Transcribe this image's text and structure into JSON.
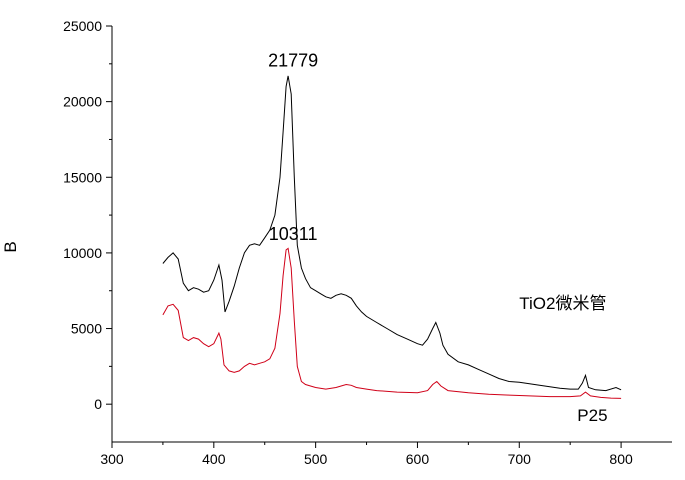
{
  "chart_data": {
    "type": "line",
    "ylabel": "B",
    "xlim": [
      300,
      850
    ],
    "ylim": [
      -2500,
      25000
    ],
    "x_ticks": [
      "300",
      "400",
      "500",
      "600",
      "700",
      "800"
    ],
    "y_ticks": [
      "0",
      "5000",
      "10000",
      "15000",
      "20000",
      "25000"
    ],
    "annotations": [
      {
        "text": "21779",
        "x": 472,
        "y": 21779
      },
      {
        "text": "10311",
        "x": 472,
        "y": 10311
      }
    ],
    "series": [
      {
        "name": "TiO2微米管",
        "color": "#000000",
        "points": [
          [
            350,
            9300
          ],
          [
            355,
            9700
          ],
          [
            360,
            10000
          ],
          [
            365,
            9600
          ],
          [
            370,
            8000
          ],
          [
            375,
            7500
          ],
          [
            380,
            7700
          ],
          [
            385,
            7600
          ],
          [
            390,
            7400
          ],
          [
            395,
            7500
          ],
          [
            400,
            8200
          ],
          [
            405,
            9200
          ],
          [
            408,
            8200
          ],
          [
            411,
            6100
          ],
          [
            415,
            6800
          ],
          [
            420,
            7800
          ],
          [
            425,
            9000
          ],
          [
            430,
            10000
          ],
          [
            435,
            10500
          ],
          [
            440,
            10600
          ],
          [
            445,
            10500
          ],
          [
            450,
            11000
          ],
          [
            455,
            11500
          ],
          [
            460,
            12500
          ],
          [
            465,
            15000
          ],
          [
            468,
            18000
          ],
          [
            471,
            21000
          ],
          [
            473,
            21700
          ],
          [
            476,
            20500
          ],
          [
            479,
            15000
          ],
          [
            482,
            10500
          ],
          [
            486,
            9000
          ],
          [
            490,
            8300
          ],
          [
            495,
            7700
          ],
          [
            500,
            7500
          ],
          [
            505,
            7300
          ],
          [
            510,
            7100
          ],
          [
            515,
            7000
          ],
          [
            520,
            7200
          ],
          [
            525,
            7300
          ],
          [
            530,
            7200
          ],
          [
            535,
            7000
          ],
          [
            540,
            6500
          ],
          [
            545,
            6100
          ],
          [
            550,
            5800
          ],
          [
            560,
            5400
          ],
          [
            570,
            5000
          ],
          [
            580,
            4600
          ],
          [
            590,
            4300
          ],
          [
            600,
            4000
          ],
          [
            605,
            3900
          ],
          [
            610,
            4300
          ],
          [
            615,
            5000
          ],
          [
            618,
            5400
          ],
          [
            622,
            4700
          ],
          [
            625,
            3900
          ],
          [
            630,
            3300
          ],
          [
            640,
            2800
          ],
          [
            650,
            2600
          ],
          [
            660,
            2300
          ],
          [
            670,
            2000
          ],
          [
            680,
            1700
          ],
          [
            690,
            1500
          ],
          [
            700,
            1450
          ],
          [
            710,
            1350
          ],
          [
            720,
            1250
          ],
          [
            730,
            1150
          ],
          [
            740,
            1050
          ],
          [
            750,
            1000
          ],
          [
            758,
            1000
          ],
          [
            762,
            1400
          ],
          [
            765,
            1900
          ],
          [
            768,
            1100
          ],
          [
            775,
            950
          ],
          [
            785,
            900
          ],
          [
            795,
            1100
          ],
          [
            800,
            950
          ]
        ]
      },
      {
        "name": "P25",
        "color": "#d00018",
        "points": [
          [
            350,
            5900
          ],
          [
            355,
            6500
          ],
          [
            360,
            6600
          ],
          [
            365,
            6200
          ],
          [
            370,
            4400
          ],
          [
            375,
            4200
          ],
          [
            380,
            4400
          ],
          [
            385,
            4300
          ],
          [
            390,
            4000
          ],
          [
            395,
            3800
          ],
          [
            400,
            4000
          ],
          [
            405,
            4700
          ],
          [
            407,
            4300
          ],
          [
            410,
            2600
          ],
          [
            415,
            2200
          ],
          [
            420,
            2100
          ],
          [
            425,
            2200
          ],
          [
            430,
            2500
          ],
          [
            435,
            2700
          ],
          [
            440,
            2600
          ],
          [
            445,
            2700
          ],
          [
            450,
            2800
          ],
          [
            455,
            3000
          ],
          [
            460,
            3700
          ],
          [
            465,
            6000
          ],
          [
            468,
            8500
          ],
          [
            471,
            10200
          ],
          [
            473,
            10300
          ],
          [
            476,
            9000
          ],
          [
            479,
            5500
          ],
          [
            482,
            2500
          ],
          [
            486,
            1500
          ],
          [
            490,
            1300
          ],
          [
            495,
            1200
          ],
          [
            500,
            1100
          ],
          [
            510,
            1000
          ],
          [
            520,
            1100
          ],
          [
            525,
            1200
          ],
          [
            530,
            1300
          ],
          [
            535,
            1250
          ],
          [
            540,
            1100
          ],
          [
            550,
            1000
          ],
          [
            560,
            900
          ],
          [
            580,
            800
          ],
          [
            600,
            750
          ],
          [
            610,
            900
          ],
          [
            615,
            1300
          ],
          [
            619,
            1500
          ],
          [
            623,
            1200
          ],
          [
            630,
            900
          ],
          [
            650,
            750
          ],
          [
            670,
            650
          ],
          [
            690,
            600
          ],
          [
            710,
            550
          ],
          [
            730,
            500
          ],
          [
            750,
            500
          ],
          [
            760,
            550
          ],
          [
            765,
            800
          ],
          [
            770,
            550
          ],
          [
            780,
            450
          ],
          [
            790,
            400
          ],
          [
            800,
            380
          ]
        ]
      }
    ],
    "series_labels": [
      {
        "text": "TiO2微米管",
        "x": 700,
        "y": 6300
      },
      {
        "text": "P25",
        "x": 757,
        "y": -1100
      }
    ]
  }
}
